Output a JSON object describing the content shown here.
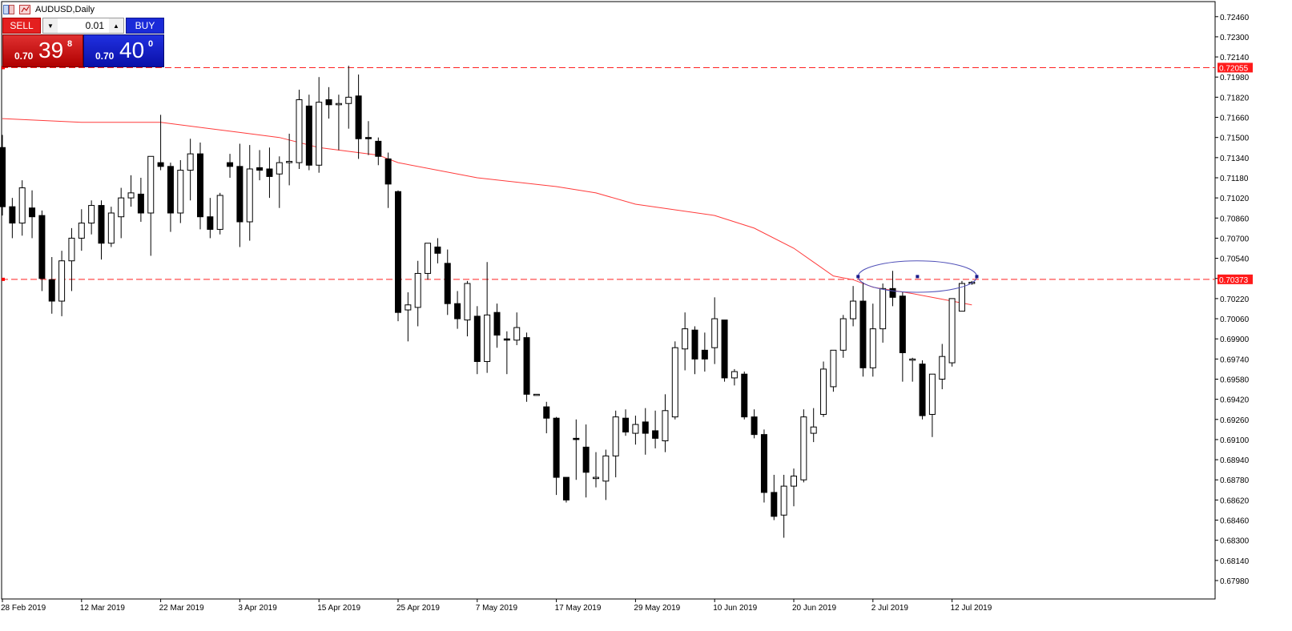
{
  "window": {
    "title": "AUDUSD,Daily"
  },
  "trade_panel": {
    "sell_label": "SELL",
    "buy_label": "BUY",
    "lot_size": "0.01",
    "sell_quote": {
      "prefix": "0.70",
      "big": "39",
      "sup": "8"
    },
    "buy_quote": {
      "prefix": "0.70",
      "big": "40",
      "sup": "0"
    }
  },
  "colors": {
    "bull_fill": "#ffffff",
    "bear_fill": "#000000",
    "ma_line": "#ff3b3b",
    "hline": "#ff2020",
    "ellipse": "#5050b8",
    "tag_bg": "#ff1a1a"
  },
  "chart_data": {
    "type": "candlestick",
    "symbol": "AUDUSD",
    "timeframe": "Daily",
    "ylim": [
      0.679,
      0.7255
    ],
    "y_ticks": [
      "0.72460",
      "0.72300",
      "0.72140",
      "0.71980",
      "0.71820",
      "0.71660",
      "0.71500",
      "0.71340",
      "0.71180",
      "0.71020",
      "0.70860",
      "0.70700",
      "0.70540",
      "0.70380",
      "0.70220",
      "0.70060",
      "0.69900",
      "0.69740",
      "0.69580",
      "0.69420",
      "0.69260",
      "0.69100",
      "0.68940",
      "0.68780",
      "0.68620",
      "0.68460",
      "0.68300",
      "0.68140",
      "0.67980"
    ],
    "x_labels": [
      {
        "text": "28 Feb 2019",
        "index": 0
      },
      {
        "text": "12 Mar 2019",
        "index": 8
      },
      {
        "text": "22 Mar 2019",
        "index": 16
      },
      {
        "text": "3 Apr 2019",
        "index": 24
      },
      {
        "text": "15 Apr 2019",
        "index": 32
      },
      {
        "text": "25 Apr 2019",
        "index": 40
      },
      {
        "text": "7 May 2019",
        "index": 48
      },
      {
        "text": "17 May 2019",
        "index": 56
      },
      {
        "text": "29 May 2019",
        "index": 64
      },
      {
        "text": "10 Jun 2019",
        "index": 72
      },
      {
        "text": "20 Jun 2019",
        "index": 80
      },
      {
        "text": "2 Jul 2019",
        "index": 88
      },
      {
        "text": "12 Jul 2019",
        "index": 96
      }
    ],
    "candles": [
      [
        0.7142,
        0.7152,
        0.7088,
        0.7095
      ],
      [
        0.7095,
        0.7102,
        0.707,
        0.7082
      ],
      [
        0.7082,
        0.7116,
        0.7072,
        0.711
      ],
      [
        0.7094,
        0.7108,
        0.707,
        0.7087
      ],
      [
        0.7088,
        0.7092,
        0.7028,
        0.7038
      ],
      [
        0.7037,
        0.7055,
        0.701,
        0.702
      ],
      [
        0.702,
        0.706,
        0.7008,
        0.7052
      ],
      [
        0.7052,
        0.7078,
        0.7028,
        0.707
      ],
      [
        0.707,
        0.7093,
        0.706,
        0.7082
      ],
      [
        0.7082,
        0.71,
        0.7073,
        0.7096
      ],
      [
        0.7096,
        0.71,
        0.7053,
        0.7066
      ],
      [
        0.7066,
        0.7095,
        0.7063,
        0.709
      ],
      [
        0.7087,
        0.711,
        0.707,
        0.7102
      ],
      [
        0.7102,
        0.712,
        0.7095,
        0.7106
      ],
      [
        0.7105,
        0.7118,
        0.7083,
        0.709
      ],
      [
        0.709,
        0.7134,
        0.7056,
        0.7135
      ],
      [
        0.713,
        0.7168,
        0.7124,
        0.7127
      ],
      [
        0.7127,
        0.713,
        0.7075,
        0.709
      ],
      [
        0.709,
        0.7132,
        0.7082,
        0.7124
      ],
      [
        0.7124,
        0.7149,
        0.71,
        0.7137
      ],
      [
        0.7137,
        0.7146,
        0.7077,
        0.7087
      ],
      [
        0.7087,
        0.7102,
        0.707,
        0.7077
      ],
      [
        0.7077,
        0.7106,
        0.7073,
        0.7104
      ],
      [
        0.713,
        0.7137,
        0.7118,
        0.7127
      ],
      [
        0.7127,
        0.7145,
        0.7063,
        0.7083
      ],
      [
        0.7083,
        0.7144,
        0.7068,
        0.7125
      ],
      [
        0.7126,
        0.714,
        0.7116,
        0.7124
      ],
      [
        0.7125,
        0.7142,
        0.7102,
        0.7119
      ],
      [
        0.7121,
        0.7135,
        0.7094,
        0.713
      ],
      [
        0.713,
        0.7153,
        0.7112,
        0.7131
      ],
      [
        0.713,
        0.7188,
        0.7125,
        0.718
      ],
      [
        0.7175,
        0.7184,
        0.7124,
        0.7128
      ],
      [
        0.7128,
        0.7198,
        0.7122,
        0.7178
      ],
      [
        0.718,
        0.719,
        0.7165,
        0.7176
      ],
      [
        0.7176,
        0.7184,
        0.714,
        0.7177
      ],
      [
        0.7177,
        0.7207,
        0.7157,
        0.7182
      ],
      [
        0.7183,
        0.72,
        0.7133,
        0.7149
      ],
      [
        0.715,
        0.7163,
        0.7136,
        0.7149
      ],
      [
        0.7147,
        0.715,
        0.7128,
        0.7135
      ],
      [
        0.7133,
        0.7138,
        0.7094,
        0.7113
      ],
      [
        0.7107,
        0.7108,
        0.7004,
        0.7011
      ],
      [
        0.7013,
        0.7027,
        0.6988,
        0.7017
      ],
      [
        0.7015,
        0.7052,
        0.7,
        0.7042
      ],
      [
        0.7042,
        0.7065,
        0.7037,
        0.7066
      ],
      [
        0.7063,
        0.707,
        0.705,
        0.7058
      ],
      [
        0.705,
        0.7061,
        0.7009,
        0.7018
      ],
      [
        0.7018,
        0.7028,
        0.6998,
        0.7006
      ],
      [
        0.7005,
        0.7036,
        0.6992,
        0.7034
      ],
      [
        0.7008,
        0.7016,
        0.6962,
        0.6972
      ],
      [
        0.6972,
        0.7051,
        0.6963,
        0.7009
      ],
      [
        0.7011,
        0.7018,
        0.6983,
        0.6993
      ],
      [
        0.699,
        0.6996,
        0.6962,
        0.6989
      ],
      [
        0.6989,
        0.7011,
        0.6985,
        0.6999
      ],
      [
        0.6991,
        0.6995,
        0.694,
        0.6946
      ],
      [
        0.6946,
        0.6946,
        0.6945,
        0.6946
      ],
      [
        0.6936,
        0.694,
        0.6915,
        0.6927
      ],
      [
        0.6927,
        0.6928,
        0.6866,
        0.688
      ],
      [
        0.688,
        0.688,
        0.686,
        0.6862
      ],
      [
        0.6911,
        0.6926,
        0.6878,
        0.691
      ],
      [
        0.6904,
        0.6922,
        0.6864,
        0.6884
      ],
      [
        0.6879,
        0.69,
        0.6872,
        0.688
      ],
      [
        0.6877,
        0.6902,
        0.6862,
        0.6897
      ],
      [
        0.6897,
        0.6933,
        0.688,
        0.6928
      ],
      [
        0.6927,
        0.6934,
        0.6913,
        0.6916
      ],
      [
        0.6915,
        0.6929,
        0.6906,
        0.6922
      ],
      [
        0.6924,
        0.6935,
        0.6898,
        0.6915
      ],
      [
        0.6917,
        0.6933,
        0.6903,
        0.6911
      ],
      [
        0.6909,
        0.6946,
        0.69,
        0.6933
      ],
      [
        0.6928,
        0.6988,
        0.6926,
        0.6983
      ],
      [
        0.6982,
        0.7011,
        0.6965,
        0.6998
      ],
      [
        0.6997,
        0.7,
        0.6962,
        0.6974
      ],
      [
        0.6981,
        0.6995,
        0.6964,
        0.6974
      ],
      [
        0.6983,
        0.7023,
        0.697,
        0.7006
      ],
      [
        0.7005,
        0.7005,
        0.6956,
        0.6959
      ],
      [
        0.6959,
        0.6966,
        0.6953,
        0.6964
      ],
      [
        0.6962,
        0.6964,
        0.6926,
        0.6928
      ],
      [
        0.6928,
        0.6934,
        0.6911,
        0.6914
      ],
      [
        0.6914,
        0.6918,
        0.686,
        0.6868
      ],
      [
        0.6868,
        0.6882,
        0.6846,
        0.6849
      ],
      [
        0.685,
        0.6882,
        0.6832,
        0.6873
      ],
      [
        0.6873,
        0.6887,
        0.6857,
        0.6881
      ],
      [
        0.6878,
        0.6934,
        0.6876,
        0.6928
      ],
      [
        0.6915,
        0.6935,
        0.6908,
        0.692
      ],
      [
        0.693,
        0.6972,
        0.6928,
        0.6966
      ],
      [
        0.6952,
        0.6977,
        0.6948,
        0.6981
      ],
      [
        0.6981,
        0.7009,
        0.6975,
        0.7006
      ],
      [
        0.7006,
        0.7032,
        0.7,
        0.702
      ],
      [
        0.702,
        0.7035,
        0.696,
        0.6967
      ],
      [
        0.6967,
        0.7018,
        0.696,
        0.6998
      ],
      [
        0.6998,
        0.7034,
        0.6987,
        0.703
      ],
      [
        0.703,
        0.7044,
        0.7016,
        0.7023
      ],
      [
        0.7024,
        0.7027,
        0.6956,
        0.6979
      ],
      [
        0.6974,
        0.6975,
        0.6956,
        0.6974
      ],
      [
        0.697,
        0.6973,
        0.6926,
        0.6929
      ],
      [
        0.693,
        0.6958,
        0.6912,
        0.6962
      ],
      [
        0.6958,
        0.6986,
        0.695,
        0.6976
      ],
      [
        0.6971,
        0.7022,
        0.6968,
        0.7022
      ],
      [
        0.7012,
        0.7036,
        0.7012,
        0.7034
      ],
      [
        0.7034,
        0.7036,
        0.7033,
        0.7035
      ]
    ],
    "moving_average": [
      [
        0,
        0.7165
      ],
      [
        8,
        0.7162
      ],
      [
        16,
        0.7162
      ],
      [
        24,
        0.7154
      ],
      [
        28,
        0.715
      ],
      [
        32,
        0.7142
      ],
      [
        38,
        0.7136
      ],
      [
        40,
        0.713
      ],
      [
        48,
        0.7118
      ],
      [
        56,
        0.7111
      ],
      [
        60,
        0.7106
      ],
      [
        64,
        0.7097
      ],
      [
        72,
        0.7088
      ],
      [
        76,
        0.7078
      ],
      [
        80,
        0.7062
      ],
      [
        84,
        0.704
      ],
      [
        86,
        0.7037
      ],
      [
        88,
        0.7031
      ],
      [
        92,
        0.7026
      ],
      [
        96,
        0.702
      ],
      [
        98,
        0.7017
      ]
    ],
    "horizontal_lines": [
      {
        "value": 0.72055,
        "label": "0.72055"
      },
      {
        "value": 0.70373,
        "label": "0.70373"
      }
    ],
    "ellipse": {
      "x_from": 86.5,
      "x_to": 98.5,
      "y_top": 0.7052,
      "y_bottom": 0.7027
    }
  }
}
